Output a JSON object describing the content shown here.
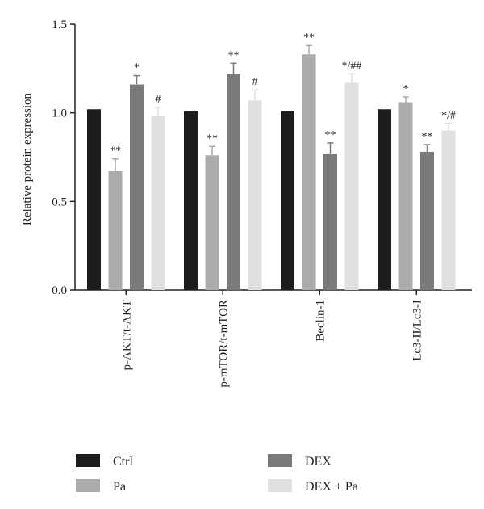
{
  "chart_data": {
    "type": "bar",
    "title": "",
    "xlabel": "",
    "ylabel": "Relative protein expression",
    "ylim": [
      0,
      1.5
    ],
    "yticks": [
      "0.0",
      "0.5",
      "1.0",
      "1.5"
    ],
    "categories": [
      "p-AKT/t-AKT",
      "p-mTOR/t-mTOR",
      "Beclin-1",
      "Lc3-II/Lc3-I"
    ],
    "series": [
      {
        "name": "Ctrl",
        "color": "#1c1c1c",
        "values": [
          1.02,
          1.01,
          1.01,
          1.02
        ],
        "errors": [
          0,
          0,
          0,
          0
        ],
        "annotations": [
          "",
          "",
          "",
          ""
        ]
      },
      {
        "name": "Pa",
        "color": "#ababab",
        "values": [
          0.67,
          0.76,
          1.33,
          1.06
        ],
        "errors": [
          0.07,
          0.05,
          0.05,
          0.03
        ],
        "annotations": [
          "**",
          "**",
          "**",
          "*"
        ]
      },
      {
        "name": "DEX",
        "color": "#7a7a7a",
        "values": [
          1.16,
          1.22,
          0.77,
          0.78
        ],
        "errors": [
          0.05,
          0.06,
          0.06,
          0.04
        ],
        "annotations": [
          "*",
          "**",
          "**",
          "**"
        ]
      },
      {
        "name": "DEX + Pa",
        "color": "#e0e0e0",
        "values": [
          0.98,
          1.07,
          1.17,
          0.9
        ],
        "errors": [
          0.05,
          0.06,
          0.05,
          0.04
        ],
        "annotations": [
          "#",
          "#",
          "*/##",
          "*/#"
        ]
      }
    ],
    "grid": false,
    "legend_position": "bottom"
  }
}
